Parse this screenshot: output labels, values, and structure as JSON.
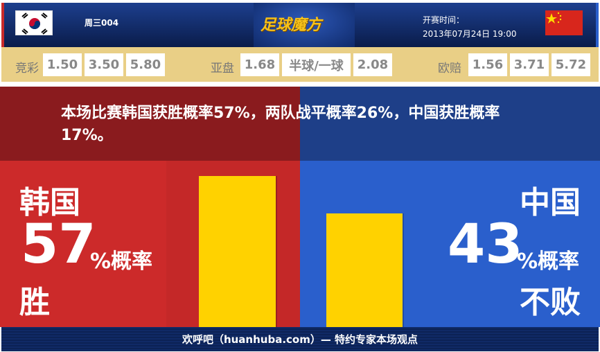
{
  "header": {
    "match_no": "周三004",
    "logo": "足球魔方",
    "time_label": "开赛时间：",
    "time_value": "2013年07月24日 19:00",
    "home_flag": "korea-flag",
    "away_flag": "china-flag"
  },
  "odds": {
    "jingcai": {
      "label": "竞彩",
      "values": [
        "1.50",
        "3.50",
        "5.80"
      ]
    },
    "yapan": {
      "label": "亚盘",
      "values": [
        "1.68",
        "半球/一球",
        "2.08"
      ]
    },
    "oupei": {
      "label": "欧赔",
      "values": [
        "1.56",
        "3.71",
        "5.72"
      ]
    }
  },
  "summary": "本场比赛韩国获胜概率57%，两队战平概率26%，中国获胜概率17%。",
  "home": {
    "team": "韩国",
    "percent": "57",
    "unit": "%概率",
    "outcome": "胜",
    "probability": 57,
    "color": "#cc2a2a"
  },
  "away": {
    "team": "中国",
    "percent": "43",
    "unit": "%概率",
    "outcome": "不败",
    "probability": 43,
    "color": "#2a5fcc"
  },
  "bar_color": "#ffd200",
  "footer": "欢呼吧（huanhuba.com）— 特约专家本场观点"
}
